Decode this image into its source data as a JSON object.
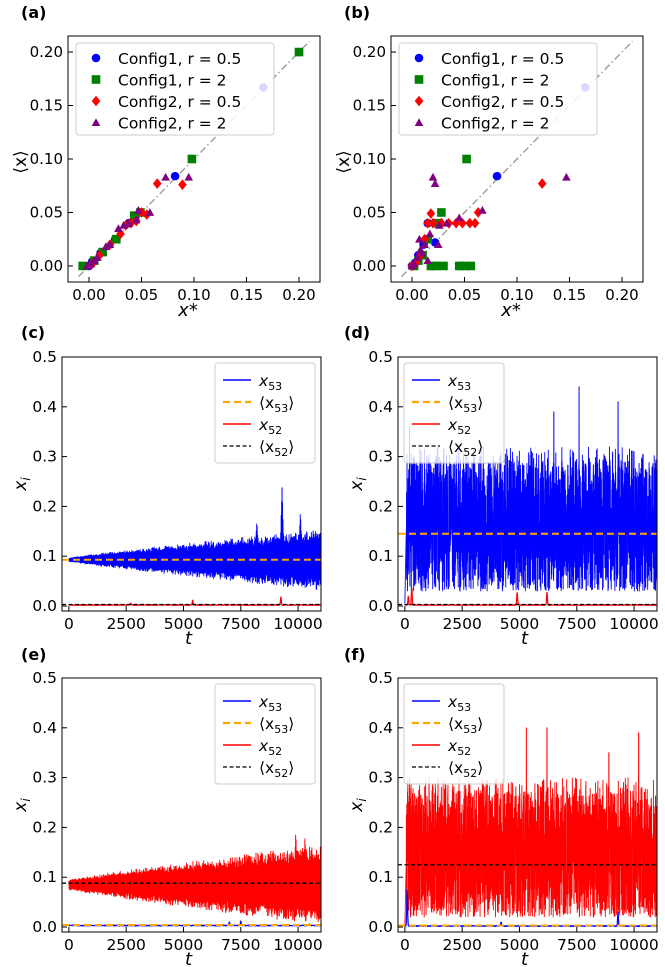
{
  "colors": {
    "blue": "#0000ff",
    "green": "#008000",
    "red": "#ff0000",
    "purple": "#800080",
    "orange": "#ffa500",
    "black": "#000000",
    "diag": "#a0a0a0"
  },
  "chart_data": [
    {
      "panel": "(a)",
      "type": "scatter",
      "xlabel": "x*",
      "ylabel": "⟨x⟩",
      "xlim": [
        -0.02,
        0.22
      ],
      "ylim": [
        -0.015,
        0.215
      ],
      "xticks": [
        0.0,
        0.05,
        0.1,
        0.15,
        0.2
      ],
      "xtick_labels": [
        "0.00",
        "0.05",
        "0.10",
        "0.15",
        "0.20"
      ],
      "yticks": [
        0.0,
        0.05,
        0.1,
        0.15,
        0.2
      ],
      "ytick_labels": [
        "0.00",
        "0.05",
        "0.10",
        "0.15",
        "0.20"
      ],
      "diagonal": [
        [
          -0.01,
          -0.01
        ],
        [
          0.21,
          0.21
        ]
      ],
      "legend_position": "upper-left",
      "series": [
        {
          "name": "Config1, r = 0.5",
          "marker": "circle",
          "color": "#0000ff",
          "points": [
            [
              0.166,
              0.167
            ],
            [
              0.082,
              0.084
            ],
            [
              0.044,
              0.045
            ],
            [
              0.038,
              0.04
            ],
            [
              0.025,
              0.025
            ],
            [
              0.011,
              0.012
            ],
            [
              0.003,
              0.004
            ],
            [
              0.0,
              0.0
            ]
          ]
        },
        {
          "name": "Config1, r = 2",
          "marker": "square",
          "color": "#008000",
          "points": [
            [
              0.2,
              0.2
            ],
            [
              0.098,
              0.1
            ],
            [
              0.049,
              0.05
            ],
            [
              0.026,
              0.025
            ],
            [
              0.013,
              0.013
            ],
            [
              -0.006,
              0.0
            ],
            [
              0.005,
              0.005
            ],
            [
              0.043,
              0.047
            ]
          ]
        },
        {
          "name": "Config2, r = 0.5",
          "marker": "diamond",
          "color": "#ff0000",
          "points": [
            [
              0.065,
              0.077
            ],
            [
              0.089,
              0.076
            ],
            [
              0.05,
              0.05
            ],
            [
              0.04,
              0.04
            ],
            [
              0.035,
              0.038
            ],
            [
              0.045,
              0.042
            ],
            [
              0.02,
              0.02
            ],
            [
              0.01,
              0.01
            ],
            [
              0.004,
              0.003
            ],
            [
              0.002,
              0.001
            ],
            [
              0.03,
              0.03
            ],
            [
              0.055,
              0.048
            ]
          ]
        },
        {
          "name": "Config2, r = 2",
          "marker": "triangle",
          "color": "#800080",
          "points": [
            [
              0.095,
              0.083
            ],
            [
              0.073,
              0.083
            ],
            [
              0.058,
              0.05
            ],
            [
              0.047,
              0.052
            ],
            [
              0.045,
              0.043
            ],
            [
              0.038,
              0.04
            ],
            [
              0.033,
              0.038
            ],
            [
              0.028,
              0.035
            ],
            [
              0.02,
              0.02
            ],
            [
              0.016,
              0.018
            ],
            [
              0.008,
              0.008
            ],
            [
              0.005,
              0.005
            ],
            [
              0.002,
              0.002
            ],
            [
              0.0,
              0.001
            ],
            [
              -0.002,
              0.0
            ]
          ]
        }
      ]
    },
    {
      "panel": "(b)",
      "type": "scatter",
      "xlabel": "x*",
      "ylabel": "⟨x⟩",
      "xlim": [
        -0.02,
        0.22
      ],
      "ylim": [
        -0.015,
        0.215
      ],
      "xticks": [
        0.0,
        0.05,
        0.1,
        0.15,
        0.2
      ],
      "xtick_labels": [
        "0.00",
        "0.05",
        "0.10",
        "0.15",
        "0.20"
      ],
      "yticks": [
        0.0,
        0.05,
        0.1,
        0.15,
        0.2
      ],
      "ytick_labels": [
        "0.00",
        "0.05",
        "0.10",
        "0.15",
        "0.20"
      ],
      "diagonal": [
        [
          -0.01,
          -0.01
        ],
        [
          0.21,
          0.21
        ]
      ],
      "legend_position": "upper-left",
      "series": [
        {
          "name": "Config1, r = 0.5",
          "marker": "circle",
          "color": "#0000ff",
          "points": [
            [
              0.165,
              0.167
            ],
            [
              0.081,
              0.084
            ],
            [
              0.022,
              0.022
            ],
            [
              0.011,
              0.02
            ],
            [
              0.006,
              0.01
            ],
            [
              0.003,
              0.003
            ],
            [
              0.0,
              0.0
            ],
            [
              0.015,
              0.04
            ]
          ]
        },
        {
          "name": "Config1, r = 2",
          "marker": "square",
          "color": "#008000",
          "points": [
            [
              0.052,
              0.1
            ],
            [
              0.028,
              0.05
            ],
            [
              0.025,
              0.04
            ],
            [
              0.015,
              0.025
            ],
            [
              0.01,
              0.01
            ],
            [
              0.006,
              0.005
            ],
            [
              0.023,
              0.0
            ],
            [
              0.03,
              0.0
            ],
            [
              0.045,
              0.0
            ],
            [
              0.05,
              0.0
            ],
            [
              0.056,
              0.0
            ],
            [
              0.002,
              0.0
            ],
            [
              0.018,
              0.0
            ]
          ]
        },
        {
          "name": "Config2, r = 0.5",
          "marker": "diamond",
          "color": "#ff0000",
          "points": [
            [
              0.124,
              0.077
            ],
            [
              0.063,
              0.05
            ],
            [
              0.018,
              0.049
            ],
            [
              0.035,
              0.04
            ],
            [
              0.028,
              0.04
            ],
            [
              0.02,
              0.04
            ],
            [
              0.015,
              0.04
            ],
            [
              0.042,
              0.04
            ],
            [
              0.048,
              0.04
            ],
            [
              0.055,
              0.04
            ],
            [
              0.06,
              0.04
            ],
            [
              0.012,
              0.025
            ],
            [
              0.008,
              0.01
            ],
            [
              0.004,
              0.003
            ],
            [
              0.0,
              0.0
            ]
          ]
        },
        {
          "name": "Config2, r = 2",
          "marker": "triangle",
          "color": "#800080",
          "points": [
            [
              0.147,
              0.083
            ],
            [
              0.02,
              0.083
            ],
            [
              0.022,
              0.077
            ],
            [
              0.067,
              0.052
            ],
            [
              0.045,
              0.045
            ],
            [
              0.033,
              0.04
            ],
            [
              0.026,
              0.038
            ],
            [
              0.017,
              0.03
            ],
            [
              0.012,
              0.02
            ],
            [
              0.008,
              0.015
            ],
            [
              0.005,
              0.008
            ],
            [
              0.002,
              0.002
            ],
            [
              0.0,
              0.0
            ],
            [
              0.015,
              0.005
            ],
            [
              0.01,
              0.012
            ],
            [
              0.025,
              0.02
            ],
            [
              0.007,
              0.025
            ]
          ]
        }
      ]
    },
    {
      "panel": "(c)",
      "type": "line",
      "xlabel": "t",
      "ylabel": "x_i",
      "xlim": [
        -300,
        11000
      ],
      "ylim": [
        -0.01,
        0.5
      ],
      "xticks": [
        0,
        2500,
        5000,
        7500,
        10000
      ],
      "xtick_labels": [
        "0",
        "2500",
        "5000",
        "7500",
        "10000"
      ],
      "yticks": [
        0.0,
        0.1,
        0.2,
        0.3,
        0.4,
        0.5
      ],
      "ytick_labels": [
        "0.0",
        "0.1",
        "0.2",
        "0.3",
        "0.4",
        "0.5"
      ],
      "legend_position": "upper-right",
      "series": [
        {
          "name": "x",
          "sub": "53",
          "legend": "x_53",
          "style": "line",
          "color": "#0000ff",
          "process": "oscillation",
          "mean": 0.093,
          "amp": [
            0.003,
            0.05
          ],
          "bursts": [
            [
              9300,
              0.24
            ],
            [
              8200,
              0.17
            ],
            [
              10100,
              0.19
            ]
          ]
        },
        {
          "name": "⟨x",
          "sub": "53",
          "legend": "⟨x_53⟩",
          "style": "dashed",
          "color": "#ffa500",
          "value": 0.093
        },
        {
          "name": "x",
          "sub": "52",
          "legend": "x_52",
          "style": "line",
          "color": "#ff0000",
          "process": "baseline",
          "mean": 0.002,
          "spikes": [
            [
              2700,
              0.006
            ],
            [
              5400,
              0.012
            ],
            [
              9250,
              0.018
            ]
          ]
        },
        {
          "name": "⟨x",
          "sub": "52",
          "legend": "⟨x_52⟩",
          "style": "dashed",
          "color": "#000000",
          "value": 0.003
        }
      ]
    },
    {
      "panel": "(d)",
      "type": "line",
      "xlabel": "t",
      "ylabel": "x_i",
      "xlim": [
        -300,
        11000
      ],
      "ylim": [
        -0.01,
        0.5
      ],
      "xticks": [
        0,
        2500,
        5000,
        7500,
        10000
      ],
      "xtick_labels": [
        "0",
        "2500",
        "5000",
        "7500",
        "10000"
      ],
      "yticks": [
        0.0,
        0.1,
        0.2,
        0.3,
        0.4,
        0.5
      ],
      "ytick_labels": [
        "0.0",
        "0.1",
        "0.2",
        "0.3",
        "0.4",
        "0.5"
      ],
      "legend_position": "upper-left",
      "series": [
        {
          "name": "x",
          "sub": "53",
          "legend": "x_53",
          "style": "line",
          "color": "#0000ff",
          "process": "chaotic",
          "mean": 0.145,
          "low": 0.03,
          "high": 0.32,
          "peaks": [
            [
              7600,
              0.44
            ],
            [
              6500,
              0.39
            ],
            [
              200,
              0.36
            ],
            [
              9300,
              0.41
            ]
          ]
        },
        {
          "name": "⟨x",
          "sub": "53",
          "legend": "⟨x_53⟩",
          "style": "dashed",
          "color": "#ffa500",
          "value": 0.145
        },
        {
          "name": "x",
          "sub": "52",
          "legend": "x_52",
          "style": "line",
          "color": "#ff0000",
          "process": "baseline",
          "mean": 0.002,
          "spikes": [
            [
              300,
              0.038
            ],
            [
              4900,
              0.028
            ],
            [
              6200,
              0.028
            ],
            [
              150,
              0.02
            ]
          ]
        },
        {
          "name": "⟨x",
          "sub": "52",
          "legend": "⟨x_52⟩",
          "style": "dashed",
          "color": "#000000",
          "value": 0.003
        }
      ]
    },
    {
      "panel": "(e)",
      "type": "line",
      "xlabel": "t",
      "ylabel": "x_i",
      "xlim": [
        -300,
        11000
      ],
      "ylim": [
        -0.01,
        0.5
      ],
      "xticks": [
        0,
        2500,
        5000,
        7500,
        10000
      ],
      "xtick_labels": [
        "0",
        "2500",
        "5000",
        "7500",
        "10000"
      ],
      "yticks": [
        0.0,
        0.1,
        0.2,
        0.3,
        0.4,
        0.5
      ],
      "ytick_labels": [
        "0.0",
        "0.1",
        "0.2",
        "0.3",
        "0.4",
        "0.5"
      ],
      "legend_position": "upper-right",
      "series": [
        {
          "name": "x",
          "sub": "53",
          "legend": "x_53",
          "style": "line",
          "color": "#0000ff",
          "process": "baseline",
          "mean": 0.003,
          "spikes": [
            [
              7000,
              0.01
            ],
            [
              7500,
              0.012
            ],
            [
              10500,
              0.006
            ]
          ]
        },
        {
          "name": "⟨x",
          "sub": "53",
          "legend": "⟨x_53⟩",
          "style": "dashed",
          "color": "#ffa500",
          "value": 0.004
        },
        {
          "name": "x",
          "sub": "52",
          "legend": "x_52",
          "style": "line",
          "color": "#ff0000",
          "process": "oscillation",
          "mean": 0.085,
          "amp": [
            0.008,
            0.065
          ],
          "bursts": [
            [
              9900,
              0.19
            ],
            [
              10300,
              0.18
            ]
          ]
        },
        {
          "name": "⟨x",
          "sub": "52",
          "legend": "⟨x_52⟩",
          "style": "dashed",
          "color": "#000000",
          "value": 0.088
        }
      ]
    },
    {
      "panel": "(f)",
      "type": "line",
      "xlabel": "t",
      "ylabel": "x_i",
      "xlim": [
        -300,
        11000
      ],
      "ylim": [
        -0.01,
        0.5
      ],
      "xticks": [
        0,
        2500,
        5000,
        7500,
        10000
      ],
      "xtick_labels": [
        "0",
        "2500",
        "5000",
        "7500",
        "10000"
      ],
      "yticks": [
        0.0,
        0.1,
        0.2,
        0.3,
        0.4,
        0.5
      ],
      "ytick_labels": [
        "0.0",
        "0.1",
        "0.2",
        "0.3",
        "0.4",
        "0.5"
      ],
      "legend_position": "upper-left",
      "series": [
        {
          "name": "x",
          "sub": "53",
          "legend": "x_53",
          "style": "line",
          "color": "#0000ff",
          "process": "baseline",
          "mean": 0.002,
          "spikes": [
            [
              100,
              0.075
            ],
            [
              4200,
              0.01
            ],
            [
              9300,
              0.03
            ]
          ]
        },
        {
          "name": "⟨x",
          "sub": "53",
          "legend": "⟨x_53⟩",
          "style": "dashed",
          "color": "#ffa500",
          "value": 0.003
        },
        {
          "name": "x",
          "sub": "52",
          "legend": "x_52",
          "style": "line",
          "color": "#ff0000",
          "process": "chaotic",
          "mean": 0.125,
          "low": 0.02,
          "high": 0.3,
          "peaks": [
            [
              5300,
              0.4
            ],
            [
              6200,
              0.4
            ],
            [
              10200,
              0.39
            ],
            [
              8900,
              0.35
            ]
          ]
        },
        {
          "name": "⟨x",
          "sub": "52",
          "legend": "⟨x_52⟩",
          "style": "dashed",
          "color": "#000000",
          "value": 0.125
        }
      ]
    }
  ]
}
